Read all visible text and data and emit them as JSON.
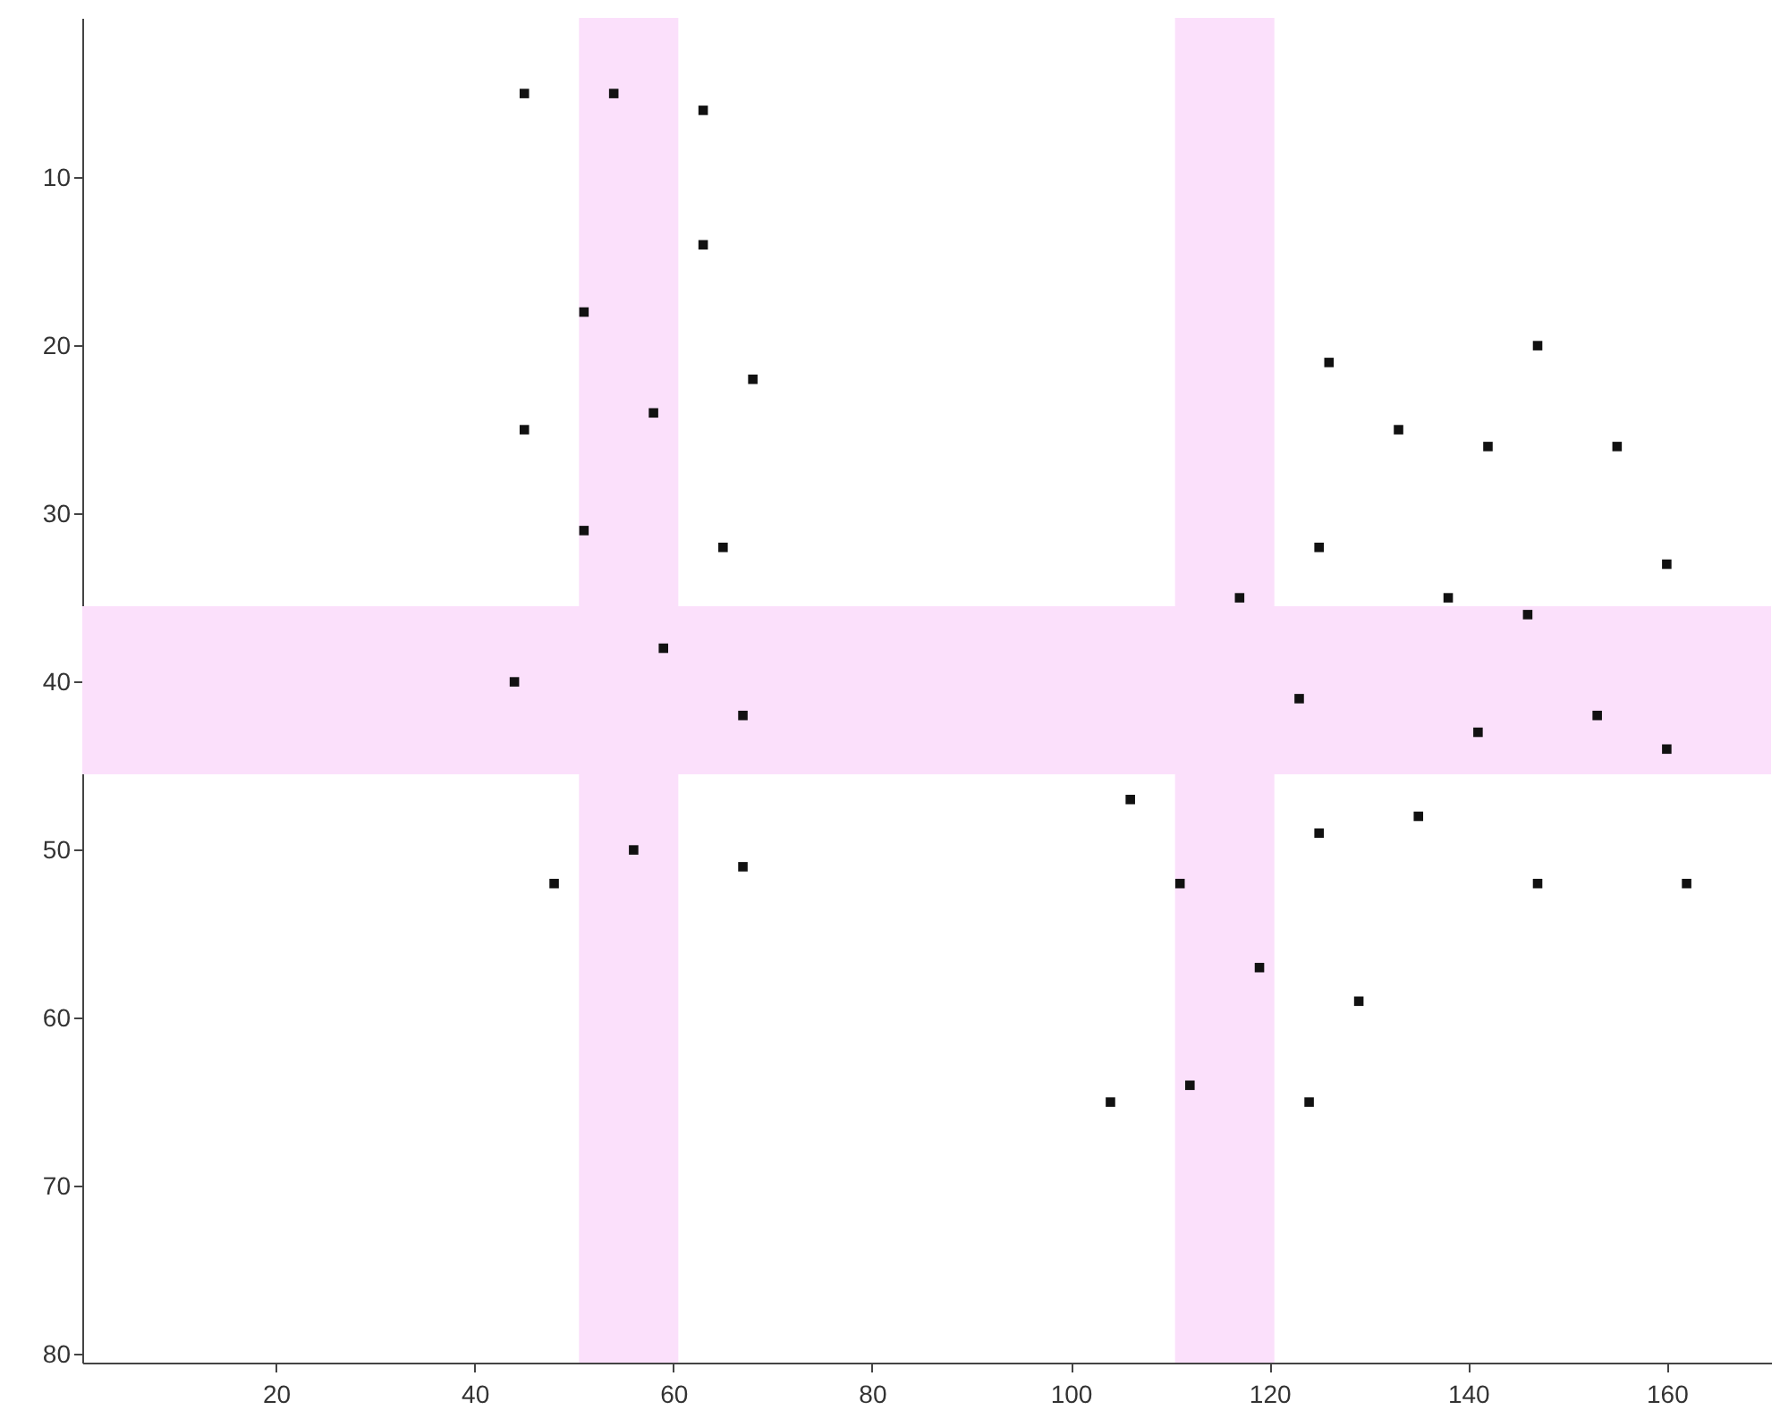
{
  "chart_data": {
    "type": "scatter",
    "marker": "square",
    "grid": false,
    "x": [
      45,
      54,
      63,
      63,
      51,
      68,
      58,
      45,
      51,
      65,
      59,
      44,
      67,
      56,
      48,
      67,
      126,
      147,
      133,
      142,
      155,
      125,
      160,
      117,
      138,
      146,
      123,
      153,
      141,
      160,
      106,
      135,
      125,
      111,
      147,
      162,
      119,
      129,
      112,
      104,
      124
    ],
    "series": [
      {
        "color": "#111111",
        "values": [
          5,
          5,
          6,
          14,
          18,
          22,
          24,
          25,
          31,
          32,
          38,
          40,
          42,
          50,
          52,
          51,
          21,
          20,
          25,
          26,
          26,
          32,
          33,
          35,
          35,
          36,
          41,
          42,
          43,
          44,
          47,
          48,
          49,
          52,
          52,
          52,
          57,
          59,
          64,
          65,
          65
        ]
      }
    ],
    "xlim": [
      0.5,
      170.5
    ],
    "ylim": [
      80.5,
      0.5
    ],
    "xticks": [
      20,
      40,
      60,
      80,
      100,
      120,
      140,
      160
    ],
    "yticks": [
      10,
      20,
      30,
      40,
      50,
      60,
      70,
      80
    ],
    "bands": [
      {
        "axis": "x",
        "from": 50.5,
        "to": 60.5,
        "color": "#fbe0fb"
      },
      {
        "axis": "x",
        "from": 110.5,
        "to": 120.5,
        "color": "#fbe0fb"
      },
      {
        "axis": "y",
        "from": 35.5,
        "to": 45.5,
        "color": "#fbe0fb"
      }
    ]
  }
}
